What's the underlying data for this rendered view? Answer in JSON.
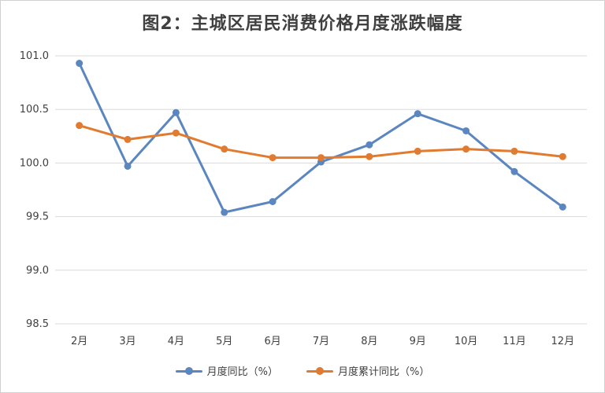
{
  "chart_data": {
    "type": "line",
    "title": "图2：主城区居民消费价格月度涨跌幅度",
    "categories": [
      "2月",
      "3月",
      "4月",
      "5月",
      "6月",
      "7月",
      "8月",
      "9月",
      "10月",
      "11月",
      "12月"
    ],
    "series": [
      {
        "name": "月度同比（%）",
        "color": "#5b86bf",
        "values": [
          100.93,
          99.97,
          100.47,
          99.54,
          99.64,
          100.01,
          100.17,
          100.46,
          100.3,
          99.92,
          99.59
        ]
      },
      {
        "name": "月度累计同比（%）",
        "color": "#e07b2f",
        "values": [
          100.35,
          100.22,
          100.28,
          100.13,
          100.05,
          100.05,
          100.06,
          100.11,
          100.13,
          100.11,
          100.06
        ]
      }
    ],
    "yticks": [
      "98.5",
      "99.0",
      "99.5",
      "100.0",
      "100.5",
      "101.0"
    ],
    "ylim": [
      98.5,
      101.0
    ],
    "grid": true,
    "legend": "bottom"
  }
}
